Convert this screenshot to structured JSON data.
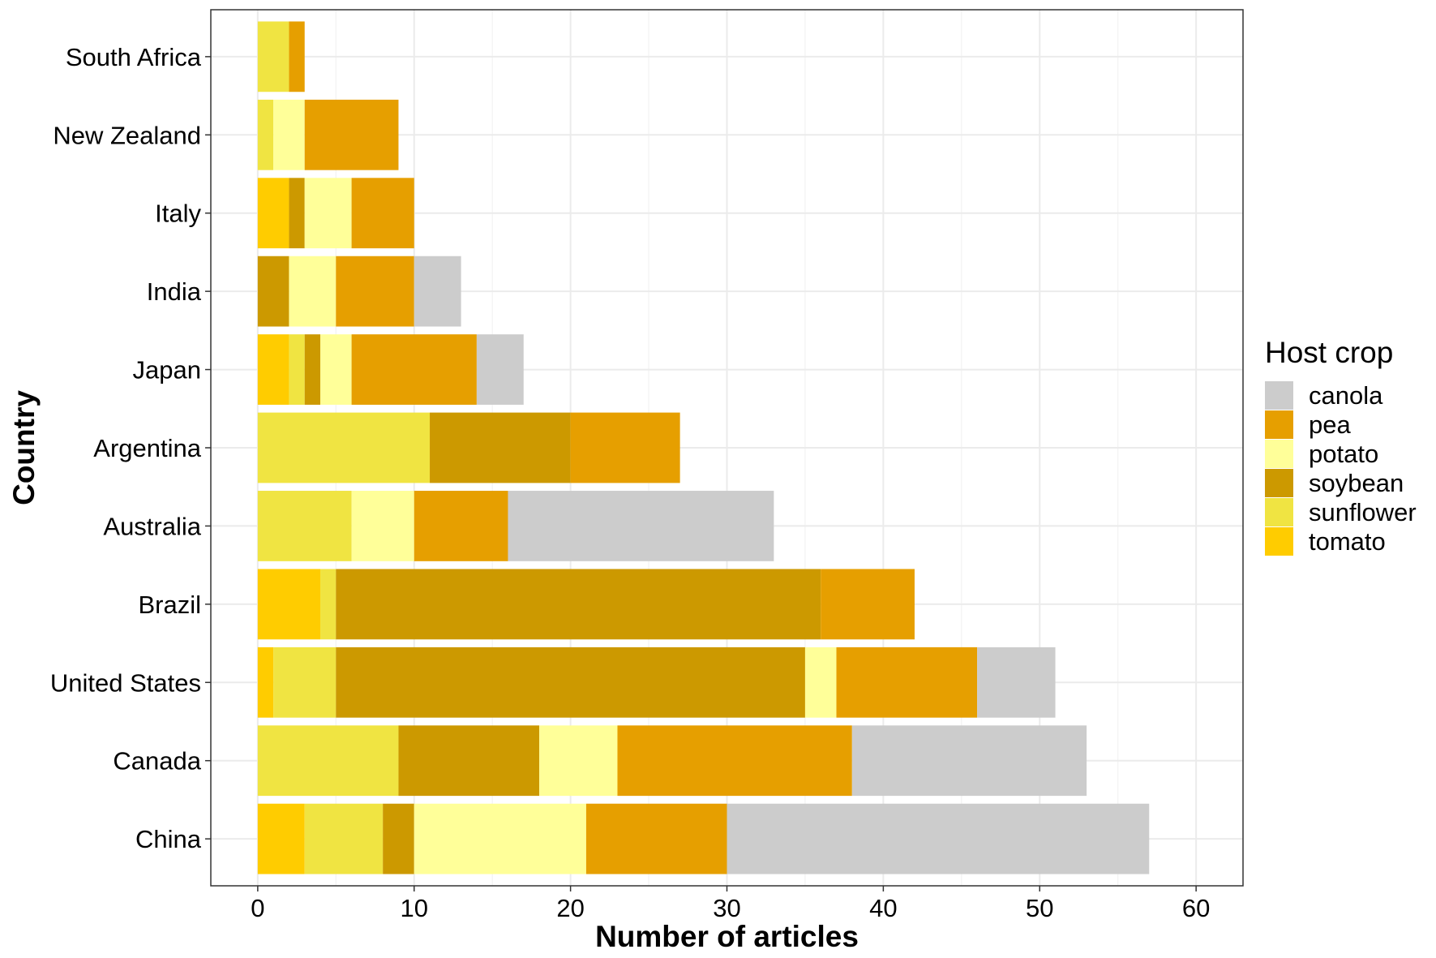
{
  "chart_data": {
    "type": "bar",
    "orientation": "horizontal",
    "stacked": true,
    "xlabel": "Number of articles",
    "ylabel": "Country",
    "xlim": [
      -3,
      63
    ],
    "xticks": [
      0,
      10,
      20,
      30,
      40,
      50,
      60
    ],
    "grid": true,
    "legend_title": "Host crop",
    "legend_position": "right",
    "categories": [
      "China",
      "Canada",
      "United States",
      "Brazil",
      "Australia",
      "Argentina",
      "Japan",
      "India",
      "Italy",
      "New Zealand",
      "South Africa"
    ],
    "stack_order": [
      "tomato",
      "sunflower",
      "soybean",
      "potato",
      "pea",
      "canola"
    ],
    "series": [
      {
        "name": "canola",
        "color": "#CCCCCC",
        "values": [
          27,
          15,
          5,
          0,
          17,
          0,
          3,
          3,
          0,
          0,
          0
        ]
      },
      {
        "name": "pea",
        "color": "#E69F00",
        "values": [
          9,
          15,
          9,
          6,
          6,
          7,
          8,
          5,
          4,
          6,
          1
        ]
      },
      {
        "name": "potato",
        "color": "#FFFF99",
        "values": [
          11,
          5,
          2,
          0,
          4,
          0,
          2,
          3,
          3,
          2,
          0
        ]
      },
      {
        "name": "soybean",
        "color": "#CC9900",
        "values": [
          2,
          9,
          30,
          31,
          0,
          9,
          1,
          2,
          1,
          0,
          0
        ]
      },
      {
        "name": "sunflower",
        "color": "#F0E442",
        "values": [
          5,
          9,
          4,
          1,
          6,
          11,
          1,
          0,
          0,
          1,
          2
        ]
      },
      {
        "name": "tomato",
        "color": "#FFCC00",
        "values": [
          3,
          0,
          1,
          4,
          0,
          0,
          2,
          0,
          2,
          0,
          0
        ]
      }
    ]
  }
}
